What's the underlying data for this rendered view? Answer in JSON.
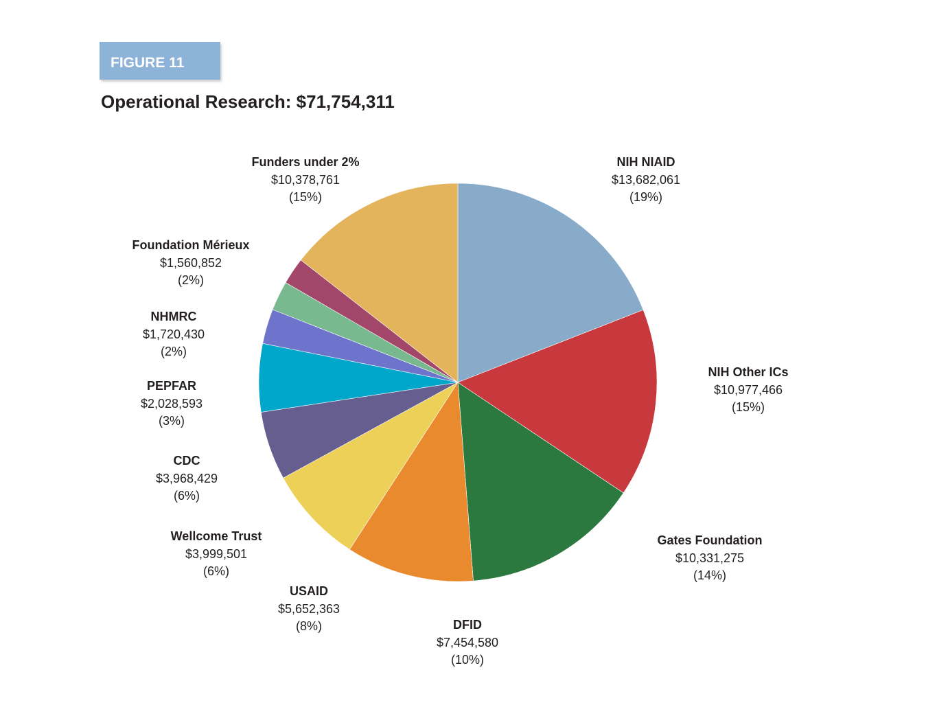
{
  "figure_tag": "FIGURE 11",
  "chart_data": {
    "type": "pie",
    "title": "Operational Research: $71,754,311",
    "total": 71754311,
    "slices": [
      {
        "name": "NIH NIAID",
        "value": 13682061,
        "value_label": "$13,682,061",
        "pct_label": "(19%)",
        "color": "#88abca"
      },
      {
        "name": "NIH Other ICs",
        "value": 10977466,
        "value_label": "$10,977,466",
        "pct_label": "(15%)",
        "color": "#c8393e"
      },
      {
        "name": "Gates Foundation",
        "value": 10331275,
        "value_label": "$10,331,275",
        "pct_label": "(14%)",
        "color": "#2c7940"
      },
      {
        "name": "DFID",
        "value": 7454580,
        "value_label": "$7,454,580",
        "pct_label": "(10%)",
        "color": "#e98a2e"
      },
      {
        "name": "USAID",
        "value": 5652363,
        "value_label": "$5,652,363",
        "pct_label": "(8%)",
        "color": "#edd057"
      },
      {
        "name": "Wellcome Trust",
        "value": 3999501,
        "value_label": "$3,999,501",
        "pct_label": "(6%)",
        "color": "#675e90"
      },
      {
        "name": "CDC",
        "value": 3968429,
        "value_label": "$3,968,429",
        "pct_label": "(6%)",
        "color": "#00a7ca"
      },
      {
        "name": "PEPFAR",
        "value": 2028593,
        "value_label": "$2,028,593",
        "pct_label": "(3%)",
        "color": "#6e74cc"
      },
      {
        "name": "NHMRC",
        "value": 1720430,
        "value_label": "$1,720,430",
        "pct_label": "(2%)",
        "color": "#79b990"
      },
      {
        "name": "Foundation Mérieux",
        "value": 1560852,
        "value_label": "$1,560,852",
        "pct_label": "(2%)",
        "color": "#a2476a"
      },
      {
        "name": "Funders under 2%",
        "value": 10378761,
        "value_label": "$10,378,761",
        "pct_label": "(15%)",
        "color": "#e3b45b"
      }
    ]
  }
}
